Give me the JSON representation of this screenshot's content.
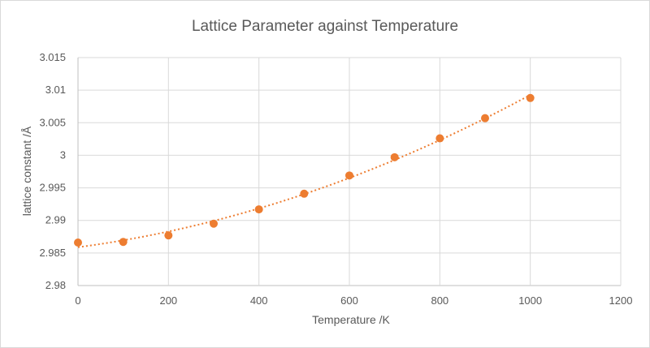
{
  "chart_data": {
    "type": "scatter",
    "title": "Lattice Parameter  against Temperature",
    "xlabel": "Temperature /K",
    "ylabel": "lattice constant /Å",
    "xlim": [
      0,
      1200
    ],
    "ylim": [
      2.98,
      3.015
    ],
    "xticks": [
      "0",
      "200",
      "400",
      "600",
      "800",
      "1000",
      "1200"
    ],
    "yticks": [
      "2.98",
      "2.985",
      "2.99",
      "2.995",
      "3",
      "3.005",
      "3.01",
      "3.015"
    ],
    "grid": "vertical and horizontal",
    "trendline": {
      "style": "dotted",
      "shape": "polynomial",
      "x_range": [
        0,
        1000
      ]
    },
    "series": [
      {
        "color": "#ED7D31",
        "x": [
          0,
          100,
          200,
          300,
          400,
          500,
          600,
          700,
          800,
          900,
          1000
        ],
        "y": [
          2.9866,
          2.9867,
          2.9877,
          2.9895,
          2.9917,
          2.9941,
          2.9969,
          2.9997,
          3.0026,
          3.0057,
          3.0088
        ]
      }
    ]
  }
}
